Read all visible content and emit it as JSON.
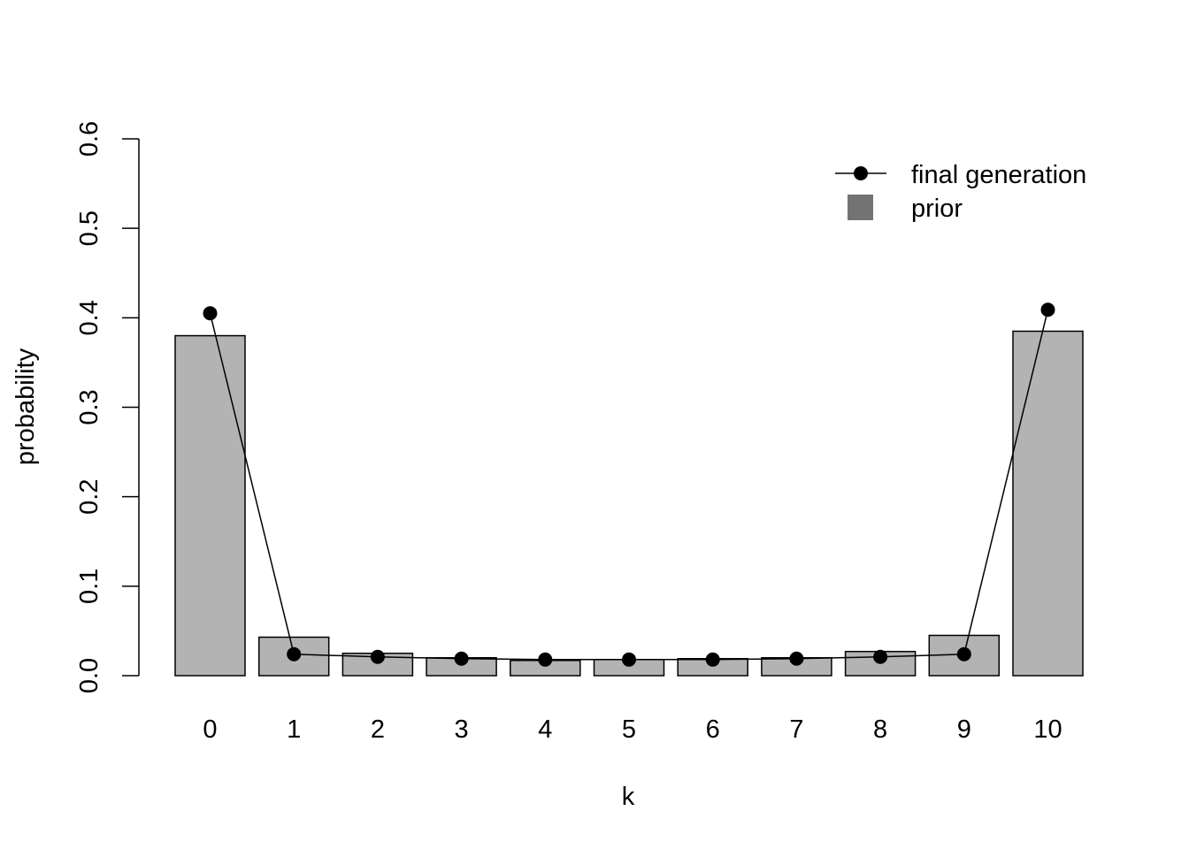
{
  "chart_data": {
    "type": "bar",
    "categories": [
      "0",
      "1",
      "2",
      "3",
      "4",
      "5",
      "6",
      "7",
      "8",
      "9",
      "10"
    ],
    "series": [
      {
        "name": "prior",
        "kind": "bar",
        "values": [
          0.38,
          0.043,
          0.025,
          0.02,
          0.017,
          0.018,
          0.019,
          0.02,
          0.027,
          0.045,
          0.385
        ]
      },
      {
        "name": "final generation",
        "kind": "line-points",
        "values": [
          0.405,
          0.024,
          0.021,
          0.019,
          0.018,
          0.018,
          0.018,
          0.019,
          0.021,
          0.024,
          0.409
        ]
      }
    ],
    "xlabel": "k",
    "ylabel": "probability",
    "ylim": [
      0,
      0.6
    ],
    "yticks": [
      "0.0",
      "0.1",
      "0.2",
      "0.3",
      "0.4",
      "0.5",
      "0.6"
    ],
    "grid": false,
    "legend_position": "top-right",
    "colors": {
      "bar_fill": "#b3b3b3",
      "legend_swatch": "#737373",
      "line": "#000000"
    }
  }
}
